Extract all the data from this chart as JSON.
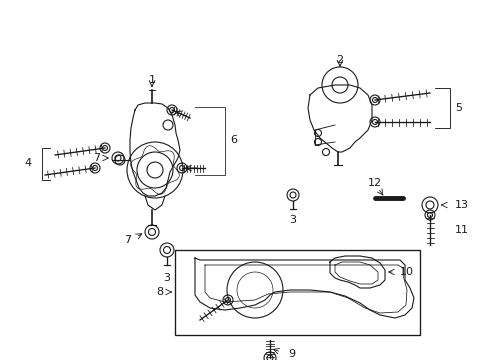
{
  "bg_color": "#ffffff",
  "line_color": "#1a1a1a",
  "figsize": [
    4.9,
    3.6
  ],
  "dpi": 100,
  "lw": 0.8
}
